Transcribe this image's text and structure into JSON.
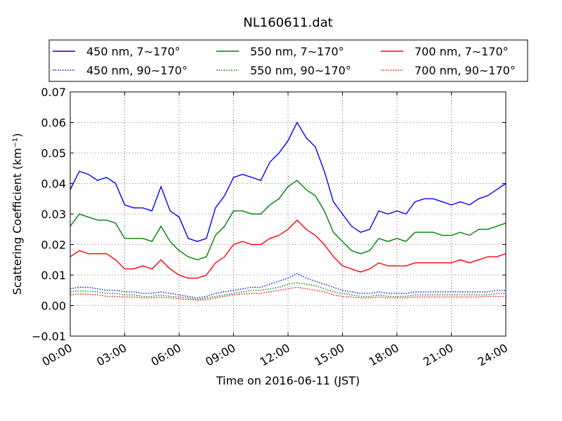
{
  "chart_data": {
    "type": "line",
    "title": "NL160611.dat",
    "xlabel": "Time on 2016-06-11 (JST)",
    "ylabel": "Scattering Coefficient (km⁻¹)",
    "xlim": [
      0,
      24
    ],
    "ylim": [
      -0.01,
      0.07
    ],
    "x_ticks": [
      "00:00",
      "03:00",
      "06:00",
      "09:00",
      "12:00",
      "15:00",
      "18:00",
      "21:00",
      "24:00"
    ],
    "y_ticks": [
      "−0.01",
      "0.00",
      "0.01",
      "0.02",
      "0.03",
      "0.04",
      "0.05",
      "0.06",
      "0.07"
    ],
    "grid": true,
    "legend_position": "top",
    "x": [
      0,
      0.5,
      1,
      1.5,
      2,
      2.5,
      3,
      3.5,
      4,
      4.5,
      5,
      5.5,
      6,
      6.5,
      7,
      7.5,
      8,
      8.5,
      9,
      9.5,
      10,
      10.5,
      11,
      11.5,
      12,
      12.5,
      13,
      13.5,
      14,
      14.5,
      15,
      15.5,
      16,
      16.5,
      17,
      17.5,
      18,
      18.5,
      19,
      19.5,
      20,
      20.5,
      21,
      21.5,
      22,
      22.5,
      23,
      23.5,
      24
    ],
    "series": [
      {
        "name": "450 nm, 7∼170°",
        "color": "#0000ff",
        "style": "solid",
        "values": [
          0.038,
          0.044,
          0.043,
          0.041,
          0.042,
          0.04,
          0.033,
          0.032,
          0.032,
          0.031,
          0.039,
          0.031,
          0.029,
          0.022,
          0.021,
          0.022,
          0.032,
          0.036,
          0.042,
          0.043,
          0.042,
          0.041,
          0.047,
          0.05,
          0.054,
          0.06,
          0.055,
          0.052,
          0.044,
          0.034,
          0.03,
          0.026,
          0.024,
          0.025,
          0.031,
          0.03,
          0.031,
          0.03,
          0.034,
          0.035,
          0.035,
          0.034,
          0.033,
          0.034,
          0.033,
          0.035,
          0.036,
          0.038,
          0.04
        ]
      },
      {
        "name": "550 nm, 7∼170°",
        "color": "#008000",
        "style": "solid",
        "values": [
          0.026,
          0.03,
          0.029,
          0.028,
          0.028,
          0.027,
          0.022,
          0.022,
          0.022,
          0.021,
          0.026,
          0.021,
          0.018,
          0.016,
          0.015,
          0.016,
          0.023,
          0.026,
          0.031,
          0.031,
          0.03,
          0.03,
          0.033,
          0.035,
          0.039,
          0.041,
          0.038,
          0.036,
          0.031,
          0.024,
          0.021,
          0.018,
          0.017,
          0.018,
          0.022,
          0.021,
          0.022,
          0.021,
          0.024,
          0.024,
          0.024,
          0.023,
          0.023,
          0.024,
          0.023,
          0.025,
          0.025,
          0.026,
          0.027
        ]
      },
      {
        "name": "700 nm, 7∼170°",
        "color": "#ff0000",
        "style": "solid",
        "values": [
          0.016,
          0.018,
          0.017,
          0.017,
          0.017,
          0.015,
          0.012,
          0.012,
          0.013,
          0.012,
          0.015,
          0.012,
          0.01,
          0.009,
          0.009,
          0.01,
          0.014,
          0.016,
          0.02,
          0.021,
          0.02,
          0.02,
          0.022,
          0.023,
          0.025,
          0.028,
          0.025,
          0.023,
          0.02,
          0.016,
          0.013,
          0.012,
          0.011,
          0.012,
          0.014,
          0.013,
          0.013,
          0.013,
          0.014,
          0.014,
          0.014,
          0.014,
          0.014,
          0.015,
          0.014,
          0.015,
          0.016,
          0.016,
          0.017
        ]
      },
      {
        "name": "450 nm, 90∼170°",
        "color": "#0000ff",
        "style": "dotted",
        "values": [
          0.0055,
          0.006,
          0.006,
          0.0055,
          0.005,
          0.005,
          0.0045,
          0.0045,
          0.004,
          0.004,
          0.0045,
          0.004,
          0.0035,
          0.003,
          0.0025,
          0.003,
          0.004,
          0.0045,
          0.005,
          0.0055,
          0.006,
          0.006,
          0.007,
          0.008,
          0.009,
          0.0105,
          0.009,
          0.008,
          0.007,
          0.006,
          0.005,
          0.0045,
          0.004,
          0.004,
          0.0045,
          0.004,
          0.004,
          0.004,
          0.0045,
          0.0045,
          0.0045,
          0.0045,
          0.0045,
          0.0045,
          0.0045,
          0.0045,
          0.0045,
          0.005,
          0.005
        ]
      },
      {
        "name": "550 nm, 90∼170°",
        "color": "#008000",
        "style": "dotted",
        "values": [
          0.0045,
          0.0048,
          0.0047,
          0.0045,
          0.004,
          0.004,
          0.0035,
          0.0035,
          0.003,
          0.003,
          0.0035,
          0.003,
          0.0028,
          0.0025,
          0.002,
          0.0025,
          0.003,
          0.0035,
          0.004,
          0.0045,
          0.005,
          0.005,
          0.0055,
          0.006,
          0.007,
          0.0075,
          0.007,
          0.0065,
          0.0055,
          0.0045,
          0.004,
          0.0035,
          0.003,
          0.003,
          0.0035,
          0.003,
          0.003,
          0.003,
          0.0035,
          0.0035,
          0.0035,
          0.0035,
          0.0035,
          0.0035,
          0.0035,
          0.0035,
          0.0035,
          0.004,
          0.004
        ]
      },
      {
        "name": "700 nm, 90∼170°",
        "color": "#ff0000",
        "style": "dotted",
        "values": [
          0.0035,
          0.0038,
          0.0037,
          0.0035,
          0.003,
          0.003,
          0.0028,
          0.0028,
          0.0025,
          0.0025,
          0.0028,
          0.0025,
          0.0022,
          0.002,
          0.0018,
          0.002,
          0.0025,
          0.003,
          0.0035,
          0.0038,
          0.004,
          0.004,
          0.0045,
          0.005,
          0.0055,
          0.006,
          0.0055,
          0.005,
          0.0045,
          0.0035,
          0.003,
          0.0028,
          0.0025,
          0.0025,
          0.0028,
          0.0025,
          0.0025,
          0.0025,
          0.0028,
          0.0028,
          0.0028,
          0.0028,
          0.0028,
          0.0028,
          0.0028,
          0.0028,
          0.003,
          0.003,
          0.003
        ]
      }
    ]
  }
}
